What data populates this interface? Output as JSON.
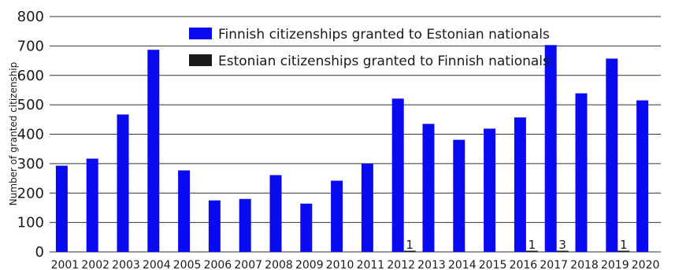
{
  "chart_data": {
    "type": "bar",
    "title": "",
    "xlabel": "",
    "ylabel": "Number of granted citizenship",
    "ylim": [
      0,
      800
    ],
    "yticks": [
      0,
      100,
      200,
      300,
      400,
      500,
      600,
      700,
      800
    ],
    "grid": true,
    "legend_position": "top-center",
    "categories": [
      "2001",
      "2002",
      "2003",
      "2004",
      "2005",
      "2006",
      "2007",
      "2008",
      "2009",
      "2010",
      "2011",
      "2012",
      "2013",
      "2014",
      "2015",
      "2016",
      "2017",
      "2018",
      "2019",
      "2020"
    ],
    "series": [
      {
        "name": "Finnish citizenships granted to Estonian nationals",
        "color": "#0a0af0",
        "values": [
          293,
          317,
          467,
          687,
          277,
          175,
          180,
          261,
          164,
          242,
          300,
          521,
          435,
          381,
          419,
          457,
          703,
          539,
          657,
          515
        ]
      },
      {
        "name": "Estonian citizenships granted to Finnish nationals",
        "color": "#1a1a1a",
        "values": [
          0,
          0,
          0,
          0,
          0,
          0,
          0,
          0,
          0,
          0,
          0,
          1,
          0,
          0,
          0,
          1,
          3,
          0,
          1,
          0
        ],
        "data_labels": [
          {
            "category": "2012",
            "label": "1"
          },
          {
            "category": "2016",
            "label": "1"
          },
          {
            "category": "2017",
            "label": "3"
          },
          {
            "category": "2019",
            "label": "1"
          }
        ]
      }
    ]
  }
}
